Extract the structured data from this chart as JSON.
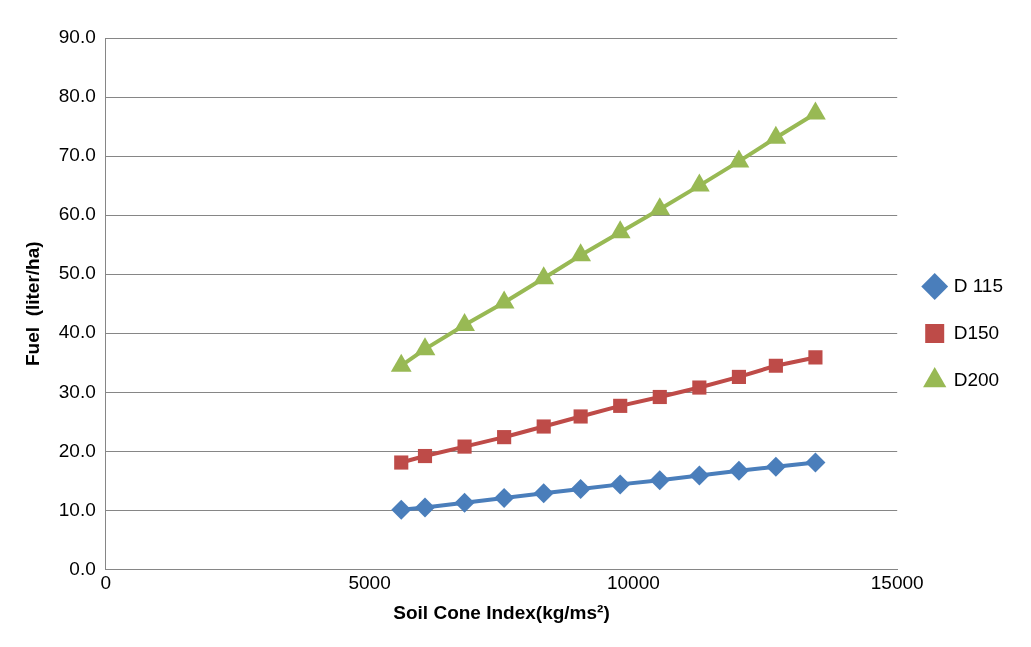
{
  "chart_data": {
    "type": "line",
    "xlabel": "Soil Cone Index(kg/ms²)",
    "ylabel": "Fuel  (liter/ha)",
    "x": [
      5600,
      6050,
      6800,
      7550,
      8300,
      9000,
      9750,
      10500,
      11250,
      12000,
      12700,
      13450
    ],
    "series": [
      {
        "name": "D 115",
        "color": "#4a7ebb",
        "marker": "diamond",
        "values": [
          10.1,
          10.5,
          11.3,
          12.1,
          12.9,
          13.6,
          14.4,
          15.1,
          15.9,
          16.7,
          17.4,
          18.1
        ]
      },
      {
        "name": "D150",
        "color": "#be4b48",
        "marker": "square",
        "values": [
          18.1,
          19.2,
          20.8,
          22.4,
          24.2,
          25.9,
          27.7,
          29.2,
          30.8,
          32.6,
          34.5,
          35.9
        ]
      },
      {
        "name": "D200",
        "color": "#98b954",
        "marker": "triangle",
        "values": [
          34.5,
          37.3,
          41.4,
          45.2,
          49.3,
          53.2,
          57.1,
          61.0,
          65.0,
          69.1,
          73.1,
          77.2
        ]
      }
    ],
    "xlim": [
      0,
      15000
    ],
    "xticks": [
      0,
      5000,
      10000,
      15000
    ],
    "ylim": [
      0,
      90
    ],
    "yticks": [
      {
        "value": 0,
        "label": "0.0"
      },
      {
        "value": 10,
        "label": "10.0"
      },
      {
        "value": 20,
        "label": "20.0"
      },
      {
        "value": 30,
        "label": "30.0"
      },
      {
        "value": 40,
        "label": "40.0"
      },
      {
        "value": 50,
        "label": "50.0"
      },
      {
        "value": 60,
        "label": "60.0"
      },
      {
        "value": 70,
        "label": "70.0"
      },
      {
        "value": 80,
        "label": "80.0"
      },
      {
        "value": 90,
        "label": "90.0"
      }
    ],
    "grid": "y",
    "legend": "right",
    "line_style": "solid"
  }
}
